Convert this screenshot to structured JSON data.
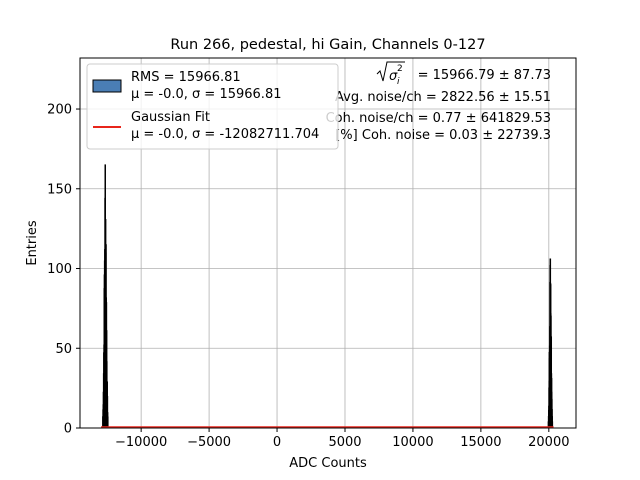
{
  "chart_data": {
    "type": "histogram",
    "title": "Run 266, pedestal, hi Gain, Channels 0-127",
    "xlabel": "ADC Counts",
    "ylabel": "Entries",
    "xlim": [
      -14500,
      22000
    ],
    "ylim": [
      0,
      232
    ],
    "x_ticks": [
      -10000,
      -5000,
      0,
      5000,
      10000,
      15000,
      20000
    ],
    "x_tick_labels": [
      "−10000",
      "−5000",
      "0",
      "5000",
      "10000",
      "15000",
      "20000"
    ],
    "y_ticks": [
      0,
      50,
      100,
      150,
      200
    ],
    "y_tick_labels": [
      "0",
      "50",
      "100",
      "150",
      "200"
    ],
    "grid": true,
    "legend_position": "top-left",
    "histogram_color": "#4a7eb5",
    "fit_color": "#e8251b",
    "histogram_peaks": [
      {
        "center": -12650,
        "width": 380,
        "peak": 165,
        "body": 140
      },
      {
        "center": 20100,
        "width": 300,
        "peak": 106,
        "body": 93
      }
    ],
    "fit_line_value": 0.5,
    "legend": [
      {
        "line1": "RMS = 15966.81",
        "line2": "μ = -0.0, σ = 15966.81",
        "kind": "patch"
      },
      {
        "line1": "Gaussian Fit",
        "line2": "μ = -0.0, σ = -12082711.704",
        "kind": "line"
      }
    ],
    "annotations": {
      "sigma_value": "= 15966.79 ± 87.73",
      "avg_noise": "Avg. noise/ch = 2822.56 ± 15.51",
      "coh_noise_ch": "Coh. noise/ch = 0.77 ± 641829.53",
      "coh_noise": "[%] Coh. noise = 0.03 ± 22739.3"
    }
  }
}
